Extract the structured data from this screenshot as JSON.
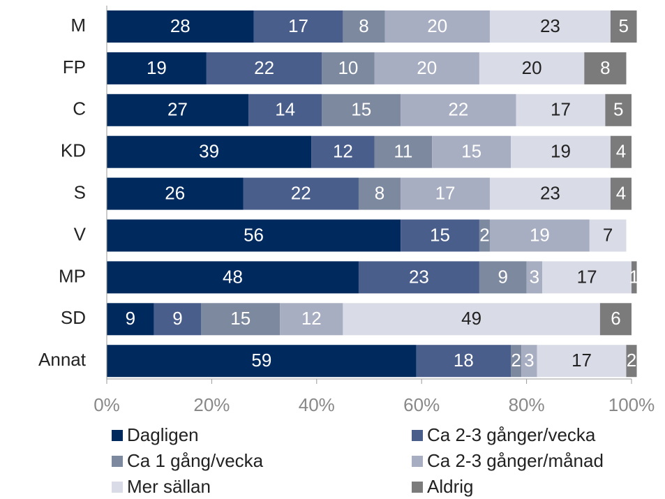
{
  "chart_data": {
    "type": "stacked-bar-horizontal",
    "categories": [
      "M",
      "FP",
      "C",
      "KD",
      "S",
      "V",
      "MP",
      "SD",
      "Annat"
    ],
    "series": [
      {
        "name": "Dagligen",
        "color": "#002a5e",
        "values": [
          28,
          19,
          27,
          39,
          26,
          56,
          48,
          9,
          59
        ]
      },
      {
        "name": "Ca 2-3 gånger/vecka",
        "color": "#4a5e8c",
        "values": [
          17,
          22,
          14,
          12,
          22,
          15,
          23,
          9,
          18
        ]
      },
      {
        "name": "Ca 1 gång/vecka",
        "color": "#7d899f",
        "values": [
          8,
          10,
          15,
          11,
          8,
          2,
          9,
          15,
          2
        ]
      },
      {
        "name": "Ca 2-3 gånger/månad",
        "color": "#a8aec2",
        "values": [
          20,
          20,
          22,
          15,
          17,
          19,
          3,
          12,
          3
        ]
      },
      {
        "name": "Mer sällan",
        "color": "#d9dbe7",
        "values": [
          23,
          20,
          17,
          19,
          23,
          7,
          17,
          49,
          17
        ]
      },
      {
        "name": "Aldrig",
        "color": "#7b7b7b",
        "values": [
          5,
          8,
          5,
          4,
          4,
          null,
          1,
          6,
          2
        ]
      }
    ],
    "label_colors": [
      "#ffffff",
      "#ffffff",
      "#ffffff",
      "#ffffff",
      "#222222",
      "#ffffff"
    ],
    "xlim": [
      0,
      100
    ],
    "xticks": [
      {
        "value": 0,
        "label": "0%"
      },
      {
        "value": 20,
        "label": "20%"
      },
      {
        "value": 40,
        "label": "40%"
      },
      {
        "value": 60,
        "label": "60%"
      },
      {
        "value": 80,
        "label": "80%"
      },
      {
        "value": 100,
        "label": "100%"
      }
    ],
    "legend": "bottom"
  }
}
